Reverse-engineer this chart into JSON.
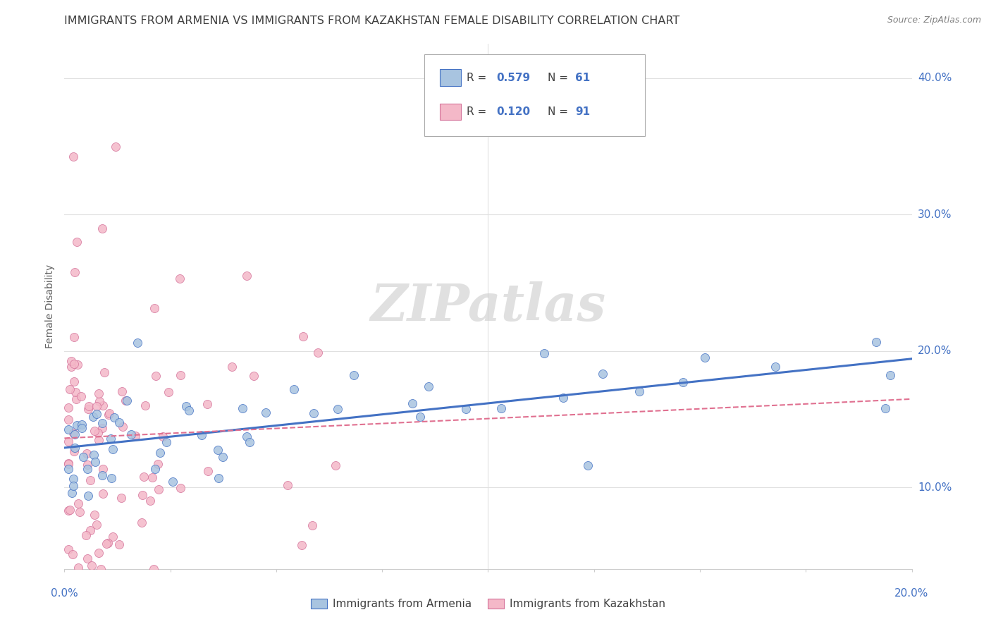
{
  "title": "IMMIGRANTS FROM ARMENIA VS IMMIGRANTS FROM KAZAKHSTAN FEMALE DISABILITY CORRELATION CHART",
  "source": "Source: ZipAtlas.com",
  "ylabel": "Female Disability",
  "ylabel_right_ticks": [
    0.1,
    0.2,
    0.3,
    0.4
  ],
  "ylabel_right_labels": [
    "10.0%",
    "20.0%",
    "30.0%",
    "40.0%"
  ],
  "xmin": 0.0,
  "xmax": 0.2,
  "ymin": 0.04,
  "ymax": 0.425,
  "watermark": "ZIPatlas",
  "color_armenia": "#a8c4e0",
  "color_armenia_edge": "#4472c4",
  "color_kazakhstan": "#f4b8c8",
  "color_kazakhstan_edge": "#d4729a",
  "color_armenia_line": "#4472c4",
  "color_kazakhstan_line": "#e07090",
  "color_r_value": "#4472c4",
  "legend_label_armenia": "Immigrants from Armenia",
  "legend_label_kazakhstan": "Immigrants from Kazakhstan",
  "background_color": "#ffffff",
  "grid_color": "#e0e0e0",
  "title_color": "#404040",
  "axis_label_color": "#4472c4",
  "title_fontsize": 11.5,
  "source_fontsize": 9,
  "tick_label_fontsize": 11,
  "legend_fontsize": 11
}
